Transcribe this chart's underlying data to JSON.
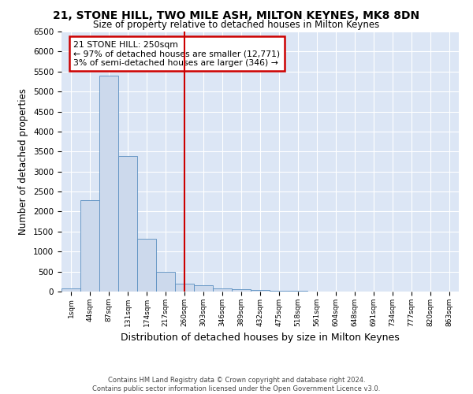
{
  "title": "21, STONE HILL, TWO MILE ASH, MILTON KEYNES, MK8 8DN",
  "subtitle": "Size of property relative to detached houses in Milton Keynes",
  "xlabel": "Distribution of detached houses by size in Milton Keynes",
  "ylabel": "Number of detached properties",
  "footer_line1": "Contains HM Land Registry data © Crown copyright and database right 2024.",
  "footer_line2": "Contains public sector information licensed under the Open Government Licence v3.0.",
  "bar_labels": [
    "1sqm",
    "44sqm",
    "87sqm",
    "131sqm",
    "174sqm",
    "217sqm",
    "260sqm",
    "303sqm",
    "346sqm",
    "389sqm",
    "432sqm",
    "475sqm",
    "518sqm",
    "561sqm",
    "604sqm",
    "648sqm",
    "691sqm",
    "734sqm",
    "777sqm",
    "820sqm",
    "863sqm"
  ],
  "bar_values": [
    75,
    2280,
    5400,
    3380,
    1320,
    490,
    195,
    155,
    75,
    55,
    35,
    20,
    10,
    5,
    5,
    3,
    2,
    2,
    1,
    1,
    1
  ],
  "bar_color": "#ccd9ec",
  "bar_edge_color": "#5a8ec0",
  "vline_x": 6,
  "vline_color": "#cc0000",
  "annotation_title": "21 STONE HILL: 250sqm",
  "annotation_line1": "← 97% of detached houses are smaller (12,771)",
  "annotation_line2": "3% of semi-detached houses are larger (346) →",
  "annotation_box_color": "#cc0000",
  "ylim": [
    0,
    6500
  ],
  "yticks": [
    0,
    500,
    1000,
    1500,
    2000,
    2500,
    3000,
    3500,
    4000,
    4500,
    5000,
    5500,
    6000,
    6500
  ],
  "plot_bg_color": "#dce6f5",
  "fig_bg_color": "#ffffff"
}
